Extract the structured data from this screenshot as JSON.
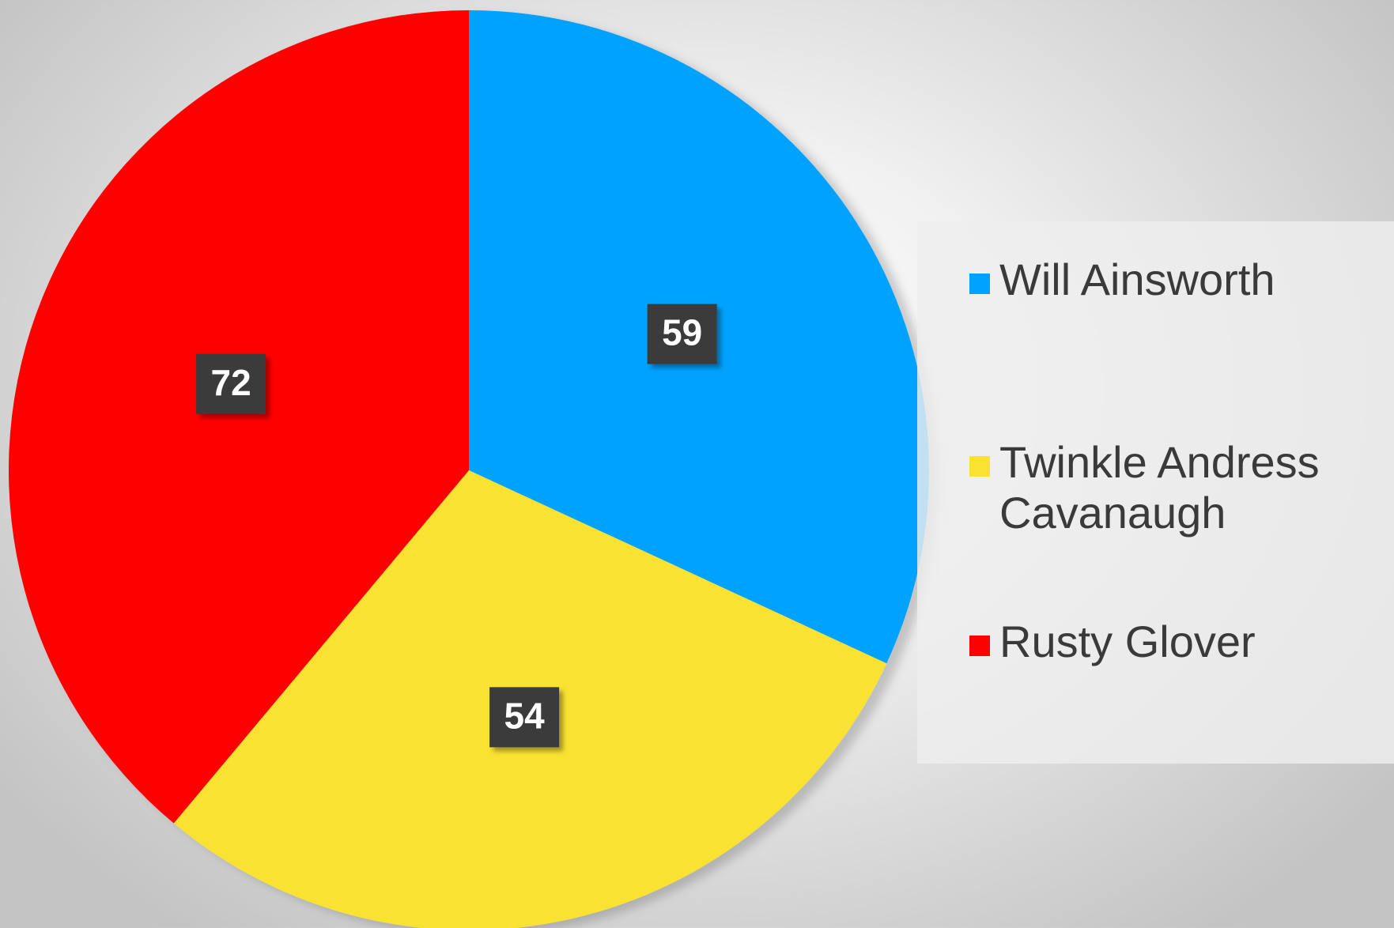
{
  "chart_data": {
    "type": "pie",
    "categories": [
      "Will Ainsworth",
      "Twinkle Andress Cavanaugh",
      "Rusty Glover"
    ],
    "values": [
      59,
      54,
      72
    ],
    "colors": [
      "#00a2ff",
      "#fae232",
      "#ff0000"
    ],
    "data_labels": [
      "59",
      "54",
      "72"
    ],
    "label_style": {
      "background": "#3b3b3b",
      "text_color": "#ffffff"
    },
    "start_angle_deg": 0,
    "direction": "clockwise",
    "legend": {
      "placement": "right",
      "entries": [
        "Will Ainsworth",
        "Twinkle Andress Cavanaugh",
        "Rusty Glover"
      ]
    }
  }
}
